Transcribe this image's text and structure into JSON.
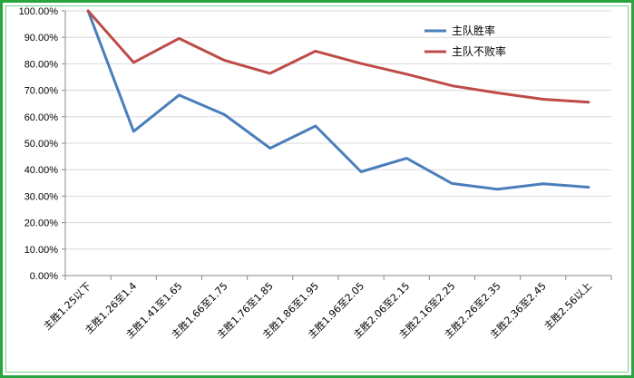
{
  "chart_data": {
    "type": "line",
    "categories": [
      "主胜1.25以下",
      "主胜1.26至1.4",
      "主胜1.41至1.65",
      "主胜1.66至1.75",
      "主胜1.76至1.85",
      "主胜1.86至1.95",
      "主胜1.96至2.05",
      "主胜2.06至2.15",
      "主胜2.16至2.25",
      "主胜2.26至2.35",
      "主胜2.36至2.45",
      "主胜2.56以上"
    ],
    "series": [
      {
        "name": "主队胜率",
        "color": "#4a7ebb",
        "values": [
          100,
          54.5,
          68.2,
          60.8,
          48.1,
          56.5,
          39.2,
          44.3,
          34.8,
          32.6,
          34.7,
          33.4
        ]
      },
      {
        "name": "主队不败率",
        "color": "#be4b48",
        "values": [
          100,
          80.5,
          89.6,
          81.3,
          76.4,
          84.8,
          80.1,
          76.1,
          71.7,
          69.0,
          66.6,
          65.5
        ]
      }
    ],
    "yticks": [
      "0.00%",
      "10.00%",
      "20.00%",
      "30.00%",
      "40.00%",
      "50.00%",
      "60.00%",
      "70.00%",
      "80.00%",
      "90.00%",
      "100.00%"
    ],
    "ylim": [
      0,
      100
    ],
    "grid": true,
    "legend_position": "top-right",
    "title": "",
    "xlabel": "",
    "ylabel": ""
  },
  "frame_color": "#2aa43f"
}
